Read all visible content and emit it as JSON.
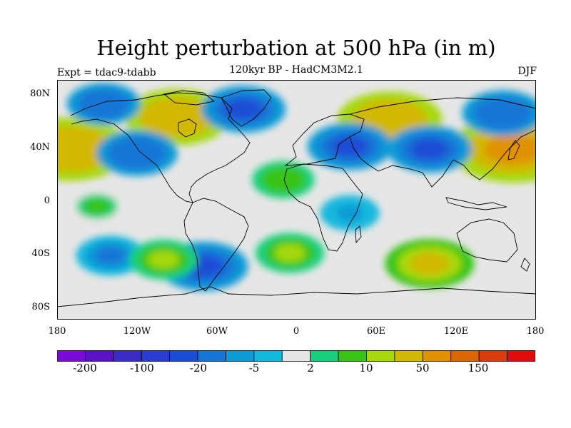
{
  "title": "Height perturbation at 500 hPa (in m)",
  "subtitle": "120kyr BP - HadCM3M2.1",
  "experiment_label": "Expt = tdac9-tdabb",
  "season": "DJF",
  "lat_labels": [
    "80N",
    "40N",
    "0",
    "40S",
    "80S"
  ],
  "lon_labels": [
    "180",
    "120W",
    "60W",
    "0",
    "60E",
    "120E",
    "180"
  ],
  "colorbar": {
    "colors": [
      "#7a0ad6",
      "#5a12c6",
      "#3c2cc6",
      "#2a3bd2",
      "#1a4ed6",
      "#1576d6",
      "#0d9ad6",
      "#14b8dd",
      "#e6e6e6",
      "#18d07c",
      "#37c414",
      "#a6d80c",
      "#d2b804",
      "#e09204",
      "#dc6604",
      "#d63c0c",
      "#e00c0c"
    ],
    "tick_labels": [
      "-200",
      "-100",
      "-20",
      "-5",
      "2",
      "10",
      "50",
      "150"
    ]
  },
  "chart_data": {
    "type": "heatmap",
    "title": "Height perturbation at 500 hPa (in m)",
    "x_range": [
      -180,
      180
    ],
    "y_range": [
      -90,
      90
    ],
    "levels": [
      -200,
      -150,
      -100,
      -50,
      -20,
      -10,
      -5,
      -2,
      2,
      5,
      10,
      20,
      50,
      100,
      150,
      200
    ],
    "anomaly_regions": [
      {
        "lon": -170,
        "lat": 38,
        "value": 45
      },
      {
        "lon": 163,
        "lat": 38,
        "value": 50
      },
      {
        "lon": -90,
        "lat": 62,
        "value": 35
      },
      {
        "lon": 70,
        "lat": 60,
        "value": 35
      },
      {
        "lon": -40,
        "lat": 68,
        "value": -22
      },
      {
        "lon": 40,
        "lat": 40,
        "value": -22
      },
      {
        "lon": 100,
        "lat": 38,
        "value": -22
      },
      {
        "lon": 155,
        "lat": 65,
        "value": -20
      },
      {
        "lon": -145,
        "lat": 72,
        "value": -15
      },
      {
        "lon": -120,
        "lat": 35,
        "value": -20
      },
      {
        "lon": -70,
        "lat": -50,
        "value": -25
      },
      {
        "lon": -140,
        "lat": -42,
        "value": -12
      },
      {
        "lon": 100,
        "lat": -48,
        "value": 25
      },
      {
        "lon": -100,
        "lat": -45,
        "value": 12
      },
      {
        "lon": -5,
        "lat": -40,
        "value": 12
      },
      {
        "lon": 40,
        "lat": -10,
        "value": -6
      },
      {
        "lon": -10,
        "lat": 15,
        "value": 8
      },
      {
        "lon": -150,
        "lat": -5,
        "value": 5
      }
    ]
  }
}
